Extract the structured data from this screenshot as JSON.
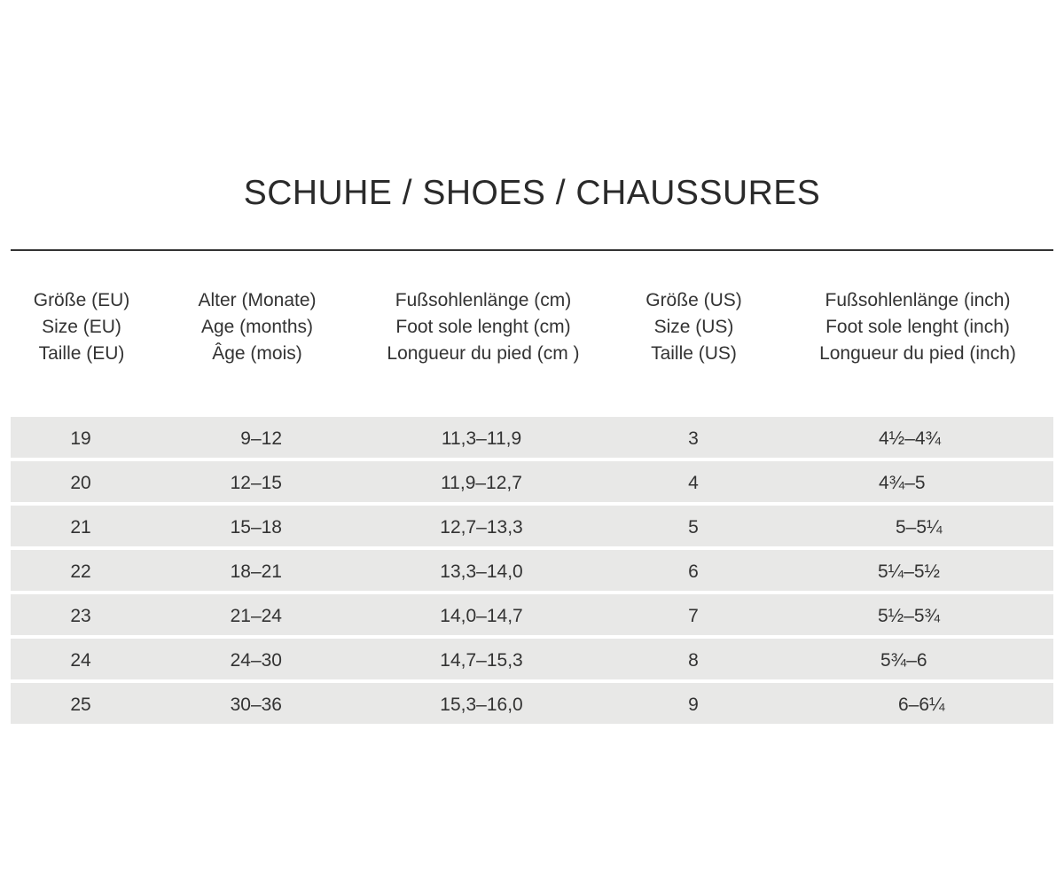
{
  "title": "SCHUHE / SHOES / CHAUSSURES",
  "headers": [
    [
      "Größe (EU)",
      "Size (EU)",
      "Taille (EU)"
    ],
    [
      "Alter (Monate)",
      "Age (months)",
      "Âge (mois)"
    ],
    [
      "Fußsohlenlänge (cm)",
      "Foot sole lenght (cm)",
      "Longueur du pied (cm )"
    ],
    [
      "Größe (US)",
      "Size (US)",
      "Taille (US)"
    ],
    [
      "Fußsohlenlänge (inch)",
      "Foot sole lenght (inch)",
      "Longueur du pied (inch)"
    ]
  ],
  "rows": [
    [
      "19",
      "9–12",
      "11,3–11,9",
      "3",
      "4½–4¾"
    ],
    [
      "20",
      "12–15",
      "11,9–12,7",
      "4",
      "4¾–5"
    ],
    [
      "21",
      "15–18",
      "12,7–13,3",
      "5",
      "5–5¼"
    ],
    [
      "22",
      "18–21",
      "13,3–14,0",
      "6",
      "5¼–5½"
    ],
    [
      "23",
      "21–24",
      "14,0–14,7",
      "7",
      "5½–5¾"
    ],
    [
      "24",
      "24–30",
      "14,7–15,3",
      "8",
      "5¾–6"
    ],
    [
      "25",
      "30–36",
      "15,3–16,0",
      "9",
      "6–6¼"
    ]
  ],
  "colors": {
    "row_background": "#e8e8e7",
    "text": "#333333",
    "rule": "#333333"
  }
}
